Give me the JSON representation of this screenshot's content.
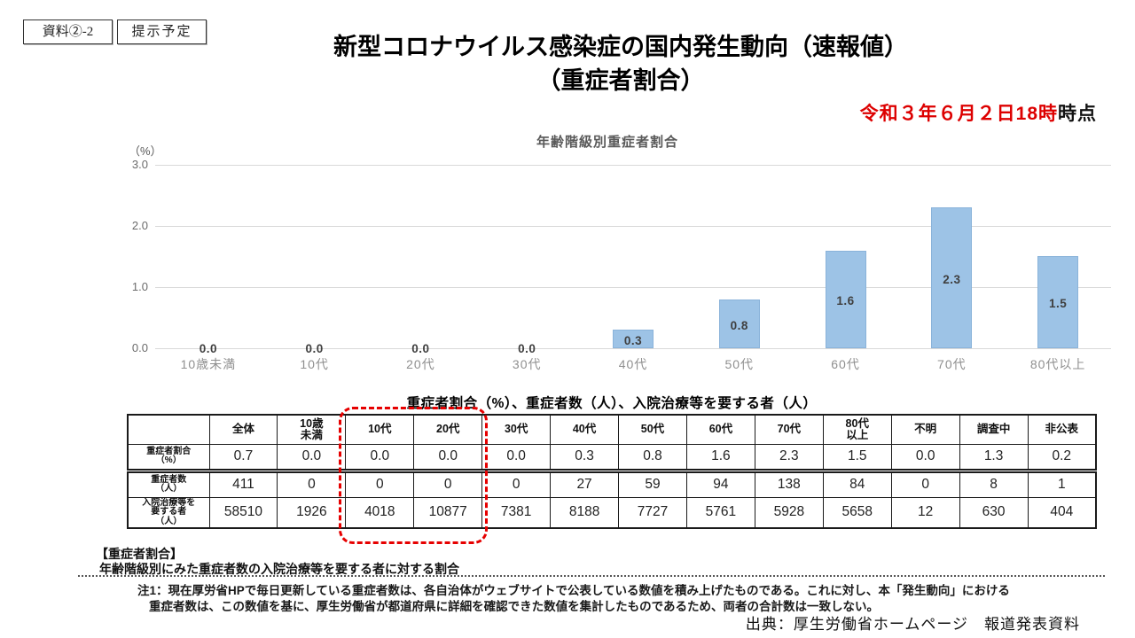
{
  "page": {
    "doc_tag": "資料②-2",
    "schedule_tag": "提示予定",
    "title_line1": "新型コロナウイルス感染症の国内発生動向（速報値）",
    "title_line2": "（重症者割合）",
    "timestamp_red": "令和３年６月２日18時",
    "timestamp_black": "時点"
  },
  "chart_data": {
    "type": "bar",
    "title": "年齢階級別重症者割合",
    "unit_label": "（%）",
    "xlabel": "",
    "ylabel": "%",
    "categories": [
      "10歳未満",
      "10代",
      "20代",
      "30代",
      "40代",
      "50代",
      "60代",
      "70代",
      "80代以上"
    ],
    "values": [
      0.0,
      0.0,
      0.0,
      0.0,
      0.3,
      0.8,
      1.6,
      2.3,
      1.5
    ],
    "ylim": [
      0,
      3.0
    ],
    "yticks": [
      3.0,
      2.0,
      1.0,
      0.0
    ],
    "grid": true,
    "legend_position": "none",
    "bar_color": "#9dc3e6"
  },
  "table": {
    "title": "重症者割合（%）、重症者数（人）、入院治療等を要する者（人）",
    "col_headers": [
      "",
      "全体",
      "10歳\n未満",
      "10代",
      "20代",
      "30代",
      "40代",
      "50代",
      "60代",
      "70代",
      "80代\n以上",
      "不明",
      "調査中",
      "非公表"
    ],
    "rows": [
      {
        "label": "重症者割合\n（%）",
        "values": [
          "0.7",
          "0.0",
          "0.0",
          "0.0",
          "0.0",
          "0.3",
          "0.8",
          "1.6",
          "2.3",
          "1.5",
          "0.0",
          "1.3",
          "0.2"
        ]
      },
      {
        "label": "重症者数\n（人）",
        "values": [
          "411",
          "0",
          "0",
          "0",
          "0",
          "27",
          "59",
          "94",
          "138",
          "84",
          "0",
          "8",
          "1"
        ]
      },
      {
        "label": "入院治療等を\n要する者\n（人）",
        "values": [
          "58510",
          "1926",
          "4018",
          "10877",
          "7381",
          "8188",
          "7727",
          "5761",
          "5928",
          "5658",
          "12",
          "630",
          "404"
        ]
      }
    ],
    "highlighted_columns": [
      "10代",
      "20代"
    ]
  },
  "footer": {
    "definition_title": "【重症者割合】",
    "definition_text": "年齢階級別にみた重症者数の入院治療等を要する者に対する割合",
    "note_line1": "注1：現在厚労省HPで毎日更新している重症者数は、各自治体がウェブサイトで公表している数値を積み上げたものである。これに対し、本「発生動向」における",
    "note_line2": "重症者数は、この数値を基に、厚生労働省が都道府県に詳細を確認できた数値を集計したものであるため、両者の合計数は一致しない。",
    "source": "出典：厚生労働省ホームページ　報道発表資料"
  },
  "colors": {
    "bar": "#9dc3e6",
    "date_red": "#dd0000",
    "highlight_red": "#e60000",
    "gridline": "#d9d9d9"
  }
}
